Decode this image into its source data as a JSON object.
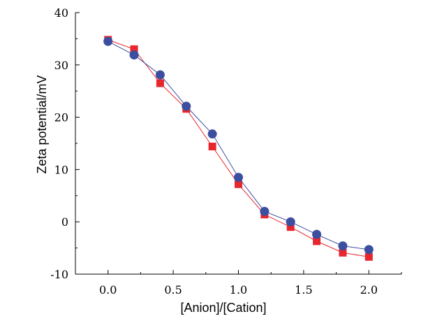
{
  "chart_data": {
    "type": "line",
    "title": "",
    "xlabel": "[Anion]/[Cation]",
    "ylabel": "Zeta potential/mV",
    "xlim": [
      -0.25,
      2.25
    ],
    "ylim": [
      -10,
      40
    ],
    "xticks": [
      0.0,
      0.5,
      1.0,
      1.5,
      2.0
    ],
    "xtick_labels": [
      "0.0",
      "0.5",
      "1.0",
      "1.5",
      "2.0"
    ],
    "yticks": [
      -10,
      0,
      10,
      20,
      30,
      40
    ],
    "ytick_labels": [
      "-10",
      "0",
      "10",
      "20",
      "30",
      "40"
    ],
    "x": [
      0.0,
      0.2,
      0.4,
      0.6,
      0.8,
      1.0,
      1.2,
      1.4,
      1.6,
      1.8,
      2.0
    ],
    "series": [
      {
        "name": "square-series",
        "marker": "square",
        "color": "#e8262d",
        "values": [
          34.8,
          33.0,
          26.5,
          21.6,
          14.4,
          7.2,
          1.4,
          -1.0,
          -3.7,
          -5.9,
          -6.7
        ]
      },
      {
        "name": "circle-series",
        "marker": "circle",
        "color": "#3c4ea0",
        "values": [
          34.5,
          31.9,
          28.1,
          22.1,
          16.8,
          8.5,
          2.0,
          0.0,
          -2.4,
          -4.6,
          -5.3
        ]
      }
    ],
    "grid": false,
    "legend": "none"
  }
}
